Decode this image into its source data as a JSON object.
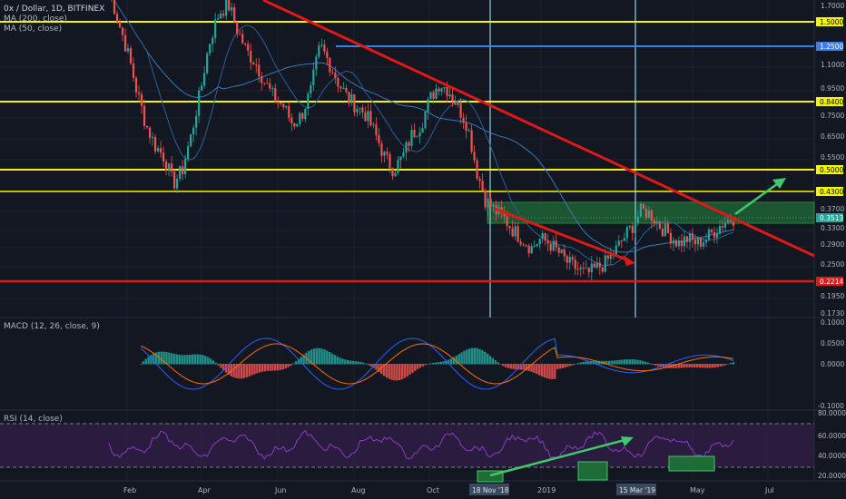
{
  "header": {
    "title": "0x / Dollar, 1D, BITFINEX",
    "indicators": [
      "MA (200, close)",
      "MA (50, close)"
    ]
  },
  "colors": {
    "background": "#131722",
    "grid": "#1e2230",
    "up": "#26a69a",
    "down": "#ef5350",
    "level_line": "#f5f500",
    "support_red": "#e01818",
    "blue_level": "#3b7fe0",
    "arrow_green": "#3ec96a",
    "zone_fill": "#1f6b35",
    "rsi_band": "#3a1f52",
    "rsi_line": "#8e3bc7",
    "ma200": "#3a78b5",
    "ma50": "#2a5f9a"
  },
  "price_axis": {
    "ticks": [
      "1.7000",
      "1.1000",
      "0.9500",
      "0.7500",
      "0.6500",
      "0.5500",
      "0.3700",
      "0.3300",
      "0.2900",
      "0.2500",
      "0.1950",
      "0.1730"
    ],
    "level_badges": [
      {
        "label": "1.5000",
        "kind": "yellow"
      },
      {
        "label": "1.2500",
        "kind": "blue"
      },
      {
        "label": "0.8400",
        "kind": "yellow"
      },
      {
        "label": "0.5000",
        "kind": "yellow"
      },
      {
        "label": "0.4300",
        "kind": "yellow"
      },
      {
        "label": "0.2214",
        "kind": "red"
      },
      {
        "label": "0.3513",
        "kind": "price"
      }
    ]
  },
  "macd": {
    "label": "MACD (12, 26, close, 9)",
    "ticks": [
      "0.1000",
      "0.0500",
      "0.0000",
      "-0.1000"
    ]
  },
  "rsi": {
    "label": "RSI (14, close)",
    "ticks": [
      "80.0000",
      "60.0000",
      "40.0000",
      "20.0000"
    ]
  },
  "time_axis": {
    "labels": [
      "Feb",
      "Apr",
      "Jun",
      "Aug",
      "Oct",
      "2019",
      "May",
      "Jul"
    ],
    "date_badges": [
      "18 Nov '18",
      "15 Mar '19"
    ]
  },
  "chart_data": {
    "type": "candlestick",
    "symbol": "0x / Dollar",
    "timeframe": "1D",
    "exchange": "BITFINEX",
    "horizontal_levels": [
      {
        "value": 1.5,
        "color": "yellow"
      },
      {
        "value": 1.25,
        "color": "blue"
      },
      {
        "value": 0.84,
        "color": "yellow"
      },
      {
        "value": 0.5,
        "color": "yellow"
      },
      {
        "value": 0.43,
        "color": "yellow"
      },
      {
        "value": 0.2214,
        "color": "red"
      }
    ],
    "last_price": 0.3513,
    "approx_closes": [
      1.9,
      1.5,
      1.2,
      0.9,
      0.7,
      0.6,
      0.55,
      0.45,
      0.5,
      0.65,
      0.9,
      1.3,
      1.6,
      1.7,
      1.4,
      1.2,
      1.1,
      0.95,
      0.85,
      0.8,
      0.7,
      0.75,
      0.9,
      1.25,
      1.1,
      0.95,
      0.85,
      0.8,
      0.75,
      0.65,
      0.55,
      0.5,
      0.55,
      0.65,
      0.7,
      0.85,
      0.95,
      0.9,
      0.8,
      0.7,
      0.5,
      0.4,
      0.37,
      0.35,
      0.32,
      0.3,
      0.28,
      0.3,
      0.29,
      0.27,
      0.25,
      0.24,
      0.23,
      0.24,
      0.25,
      0.27,
      0.3,
      0.33,
      0.37,
      0.36,
      0.33,
      0.31,
      0.29,
      0.3,
      0.29,
      0.3,
      0.32,
      0.34,
      0.35
    ],
    "annotations": [
      "descending red trendline",
      "green support zone 0.33-0.37",
      "green breakout arrow",
      "RSI higher-lows arrow"
    ]
  }
}
